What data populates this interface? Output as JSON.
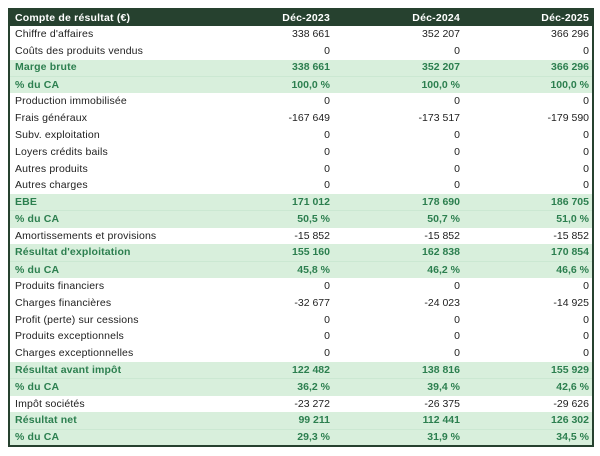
{
  "table": {
    "title": "Compte de résultat (€)",
    "columns": [
      "Déc-2023",
      "Déc-2024",
      "Déc-2025"
    ],
    "rows": [
      {
        "label": "Chiffre d'affaires",
        "values": [
          "338 661",
          "352 207",
          "366 296"
        ],
        "highlight": false
      },
      {
        "label": "Coûts des produits vendus",
        "values": [
          "0",
          "0",
          "0"
        ],
        "highlight": false
      },
      {
        "label": "Marge brute",
        "values": [
          "338 661",
          "352 207",
          "366 296"
        ],
        "highlight": true
      },
      {
        "label": "% du CA",
        "values": [
          "100,0 %",
          "100,0 %",
          "100,0 %"
        ],
        "highlight": true
      },
      {
        "label": "Production immobilisée",
        "values": [
          "0",
          "0",
          "0"
        ],
        "highlight": false
      },
      {
        "label": "Frais généraux",
        "values": [
          "-167 649",
          "-173 517",
          "-179 590"
        ],
        "highlight": false
      },
      {
        "label": "Subv. exploitation",
        "values": [
          "0",
          "0",
          "0"
        ],
        "highlight": false
      },
      {
        "label": "Loyers crédits bails",
        "values": [
          "0",
          "0",
          "0"
        ],
        "highlight": false
      },
      {
        "label": "Autres produits",
        "values": [
          "0",
          "0",
          "0"
        ],
        "highlight": false
      },
      {
        "label": "Autres charges",
        "values": [
          "0",
          "0",
          "0"
        ],
        "highlight": false
      },
      {
        "label": "EBE",
        "values": [
          "171 012",
          "178 690",
          "186 705"
        ],
        "highlight": true
      },
      {
        "label": "% du CA",
        "values": [
          "50,5 %",
          "50,7 %",
          "51,0 %"
        ],
        "highlight": true
      },
      {
        "label": "Amortissements et provisions",
        "values": [
          "-15 852",
          "-15 852",
          "-15 852"
        ],
        "highlight": false
      },
      {
        "label": "Résultat d'exploitation",
        "values": [
          "155 160",
          "162 838",
          "170 854"
        ],
        "highlight": true
      },
      {
        "label": "% du CA",
        "values": [
          "45,8 %",
          "46,2 %",
          "46,6 %"
        ],
        "highlight": true
      },
      {
        "label": "Produits financiers",
        "values": [
          "0",
          "0",
          "0"
        ],
        "highlight": false
      },
      {
        "label": "Charges financières",
        "values": [
          "-32 677",
          "-24 023",
          "-14 925"
        ],
        "highlight": false
      },
      {
        "label": "Profit (perte) sur cessions",
        "values": [
          "0",
          "0",
          "0"
        ],
        "highlight": false
      },
      {
        "label": "Produits exceptionnels",
        "values": [
          "0",
          "0",
          "0"
        ],
        "highlight": false
      },
      {
        "label": "Charges exceptionnelles",
        "values": [
          "0",
          "0",
          "0"
        ],
        "highlight": false
      },
      {
        "label": "Résultat avant impôt",
        "values": [
          "122 482",
          "138 816",
          "155 929"
        ],
        "highlight": true
      },
      {
        "label": "% du CA",
        "values": [
          "36,2 %",
          "39,4 %",
          "42,6 %"
        ],
        "highlight": true
      },
      {
        "label": "Impôt sociétés",
        "values": [
          "-23 272",
          "-26 375",
          "-29 626"
        ],
        "highlight": false
      },
      {
        "label": "Résultat net",
        "values": [
          "99 211",
          "112 441",
          "126 302"
        ],
        "highlight": true
      },
      {
        "label": "% du CA",
        "values": [
          "29,3 %",
          "31,9 %",
          "34,5 %"
        ],
        "highlight": true
      }
    ]
  },
  "colors": {
    "header_bg": "#26412f",
    "header_text": "#ffffff",
    "highlight_bg": "#d8efdc",
    "highlight_text": "#2c7f4f",
    "body_text": "#212121",
    "border": "#26412f",
    "page_bg": "#ffffff"
  }
}
